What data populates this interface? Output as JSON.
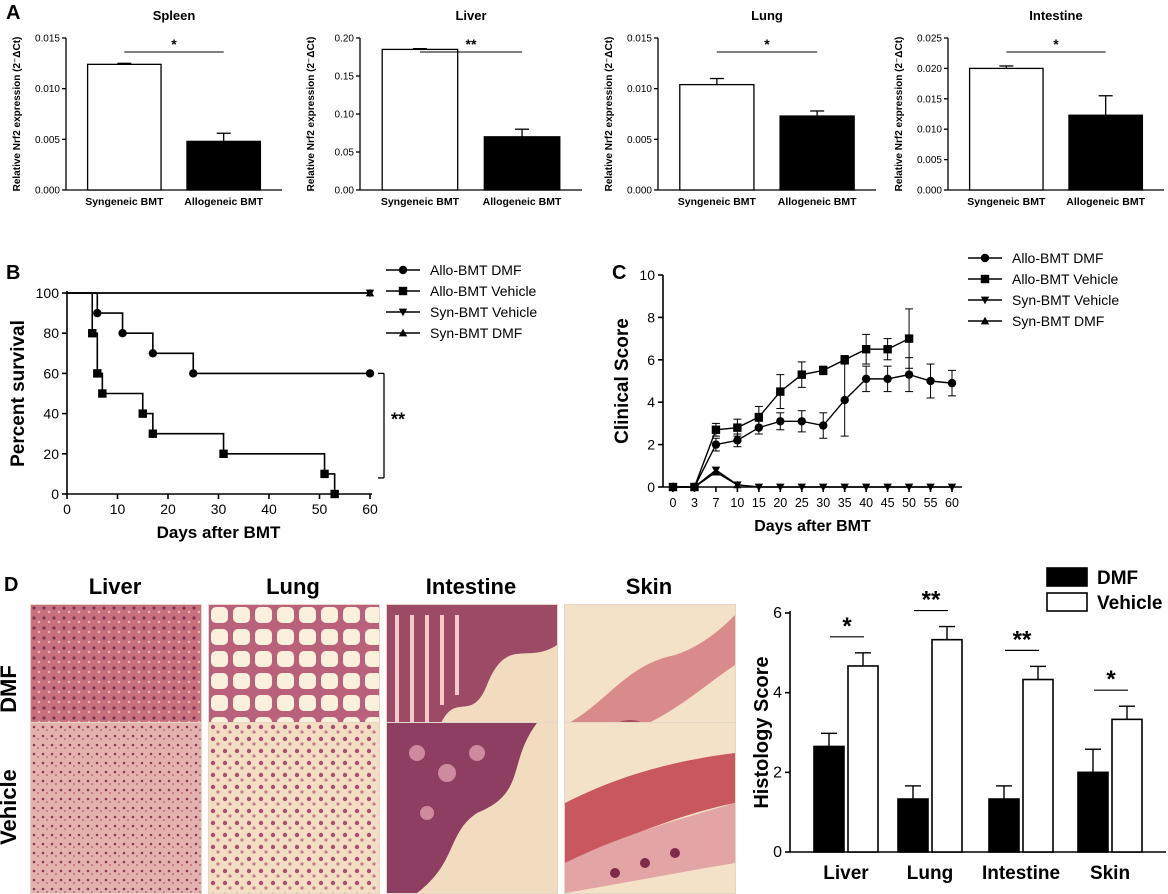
{
  "panels": {
    "a": "A",
    "b": "B",
    "c": "C",
    "d": "D"
  },
  "chart_data": [
    {
      "id": "A1",
      "type": "bar",
      "title": "Spleen",
      "ylabel": "Relative Nrf2 expression (2⁻ΔCt)",
      "categories": [
        "Syngeneic BMT",
        "Allogeneic BMT"
      ],
      "values": [
        0.0124,
        0.0048
      ],
      "errors": [
        0.0001,
        0.0008
      ],
      "ylim": [
        0,
        0.015
      ],
      "yticks": [
        "0.000",
        "0.005",
        "0.010",
        "0.015"
      ],
      "ytick_values": [
        0,
        0.005,
        0.01,
        0.015
      ],
      "significance": "*",
      "fills": [
        "#ffffff",
        "#000000"
      ]
    },
    {
      "id": "A2",
      "type": "bar",
      "title": "Liver",
      "ylabel": "Relative Nrf2 expression (2⁻ΔCt)",
      "categories": [
        "Syngeneic BMT",
        "Allogeneic BMT"
      ],
      "values": [
        0.185,
        0.07
      ],
      "errors": [
        0.001,
        0.01
      ],
      "ylim": [
        0,
        0.2
      ],
      "yticks": [
        "0.00",
        "0.05",
        "0.10",
        "0.15",
        "0.20"
      ],
      "ytick_values": [
        0,
        0.05,
        0.1,
        0.15,
        0.2
      ],
      "significance": "**",
      "fills": [
        "#ffffff",
        "#000000"
      ]
    },
    {
      "id": "A3",
      "type": "bar",
      "title": "Lung",
      "ylabel": "Relative Nrf2 expression (2⁻ΔCt)",
      "categories": [
        "Syngeneic BMT",
        "Allogeneic BMT"
      ],
      "values": [
        0.0104,
        0.0073
      ],
      "errors": [
        0.0006,
        0.0005
      ],
      "ylim": [
        0,
        0.015
      ],
      "yticks": [
        "0.000",
        "0.005",
        "0.010",
        "0.015"
      ],
      "ytick_values": [
        0,
        0.005,
        0.01,
        0.015
      ],
      "significance": "*",
      "fills": [
        "#ffffff",
        "#000000"
      ]
    },
    {
      "id": "A4",
      "type": "bar",
      "title": "Intestine",
      "ylabel": "Relative Nrf2 expression (2⁻ΔCt)",
      "categories": [
        "Syngeneic BMT",
        "Allogeneic BMT"
      ],
      "values": [
        0.02,
        0.0123
      ],
      "errors": [
        0.0004,
        0.0032
      ],
      "ylim": [
        0,
        0.025
      ],
      "yticks": [
        "0.000",
        "0.005",
        "0.010",
        "0.015",
        "0.020",
        "0.025"
      ],
      "ytick_values": [
        0,
        0.005,
        0.01,
        0.015,
        0.02,
        0.025
      ],
      "significance": "*",
      "fills": [
        "#ffffff",
        "#000000"
      ]
    },
    {
      "id": "B",
      "type": "line",
      "step": true,
      "xlabel": "Days after BMT",
      "ylabel": "Percent survival",
      "xlim": [
        0,
        60
      ],
      "ylim": [
        0,
        100
      ],
      "xticks": [
        0,
        10,
        20,
        30,
        40,
        50,
        60
      ],
      "yticks": [
        0,
        20,
        40,
        60,
        80,
        100
      ],
      "significance": "**",
      "series": [
        {
          "name": "Allo-BMT DMF",
          "marker": "circle",
          "x": [
            0,
            6,
            11,
            17,
            25,
            60
          ],
          "y": [
            100,
            90,
            80,
            70,
            60,
            60
          ]
        },
        {
          "name": "Allo-BMT Vehicle",
          "marker": "square",
          "x": [
            0,
            5,
            6,
            7,
            15,
            17,
            31,
            51,
            53
          ],
          "y": [
            100,
            80,
            60,
            50,
            40,
            30,
            20,
            10,
            0
          ]
        },
        {
          "name": "Syn-BMT Vehicle",
          "marker": "triangle-down",
          "x": [
            0,
            60
          ],
          "y": [
            100,
            100
          ]
        },
        {
          "name": "Syn-BMT DMF",
          "marker": "triangle-up",
          "x": [
            0,
            60
          ],
          "y": [
            100,
            100
          ]
        }
      ]
    },
    {
      "id": "C",
      "type": "line",
      "xlabel": "Days after BMT",
      "ylabel": "Clinical Score",
      "ylim": [
        0,
        10
      ],
      "xticks": [
        "0",
        "3",
        "7",
        "10",
        "15",
        "20",
        "25",
        "30",
        "35",
        "40",
        "45",
        "50",
        "55",
        "60"
      ],
      "yticks": [
        0,
        2,
        4,
        6,
        8,
        10
      ],
      "series": [
        {
          "name": "Allo-BMT DMF",
          "marker": "circle",
          "x": [
            "0",
            "3",
            "7",
            "10",
            "15",
            "20",
            "25",
            "30",
            "35",
            "40",
            "45",
            "50",
            "55",
            "60"
          ],
          "y": [
            0,
            0,
            2.0,
            2.2,
            2.8,
            3.1,
            3.1,
            2.9,
            4.1,
            5.1,
            5.1,
            5.3,
            5.0,
            4.9
          ],
          "err": [
            0,
            0,
            0.3,
            0.3,
            0.3,
            0.4,
            0.5,
            0.6,
            1.7,
            0.6,
            0.6,
            0.8,
            0.8,
            0.6
          ]
        },
        {
          "name": "Allo-BMT Vehicle",
          "marker": "square",
          "x": [
            "0",
            "3",
            "7",
            "10",
            "15",
            "20",
            "25",
            "30",
            "35",
            "40",
            "45",
            "50"
          ],
          "y": [
            0,
            0,
            2.7,
            2.8,
            3.3,
            4.5,
            5.3,
            5.5,
            6.0,
            6.5,
            6.5,
            7.0
          ],
          "err": [
            0,
            0,
            0.3,
            0.4,
            0.5,
            0.8,
            0.6,
            0.2,
            0.2,
            0.7,
            0.5,
            1.4
          ]
        },
        {
          "name": "Syn-BMT Vehicle",
          "marker": "triangle-down",
          "x": [
            "0",
            "3",
            "7",
            "10",
            "15",
            "20",
            "25",
            "30",
            "35",
            "40",
            "45",
            "50",
            "55",
            "60"
          ],
          "y": [
            0,
            0,
            0.8,
            0.1,
            0,
            0,
            0,
            0,
            0,
            0,
            0,
            0,
            0,
            0
          ]
        },
        {
          "name": "Syn-BMT DMF",
          "marker": "triangle-up",
          "x": [
            "0",
            "3",
            "7",
            "10"
          ],
          "y": [
            0,
            0,
            0.7,
            0.1
          ]
        }
      ]
    },
    {
      "id": "D2",
      "type": "bar",
      "grouped": true,
      "ylabel": "Histology Score",
      "ylim": [
        0,
        6
      ],
      "yticks": [
        0,
        2,
        4,
        6
      ],
      "categories": [
        "Liver",
        "Lung",
        "Intestine",
        "Skin"
      ],
      "series": [
        {
          "name": "DMF",
          "fill": "#000000",
          "values": [
            2.65,
            1.33,
            1.33,
            2.0
          ],
          "errors": [
            0.33,
            0.33,
            0.33,
            0.58
          ]
        },
        {
          "name": "Vehicle",
          "fill": "#ffffff",
          "values": [
            4.67,
            5.33,
            4.33,
            3.33
          ],
          "errors": [
            0.33,
            0.33,
            0.33,
            0.33
          ]
        }
      ],
      "significance": [
        "*",
        "**",
        "**",
        "*"
      ]
    }
  ],
  "histology": {
    "columns": [
      "Liver",
      "Lung",
      "Intestine",
      "Skin"
    ],
    "rows": [
      "DMF",
      "Vehicle"
    ]
  }
}
